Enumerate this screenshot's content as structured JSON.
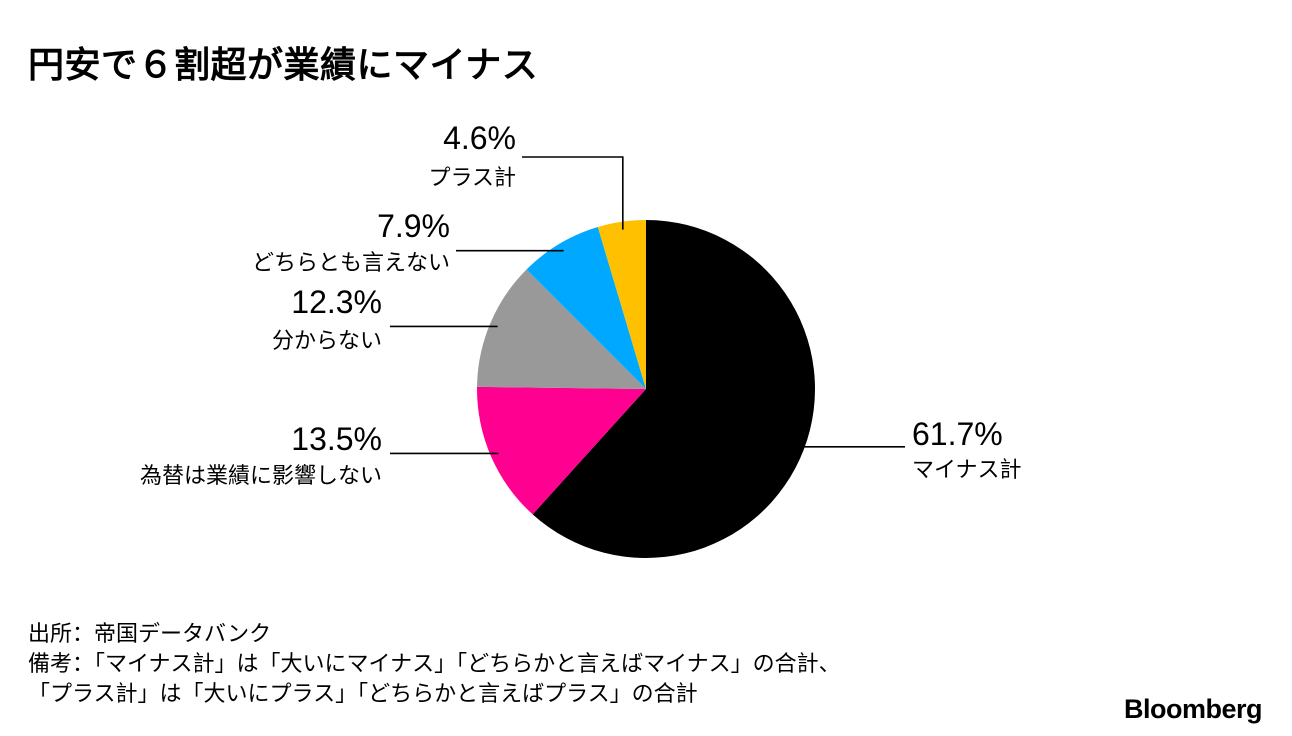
{
  "title": "円安で６割超が業績にマイナス",
  "chart_data": {
    "type": "pie",
    "title": "円安で６割超が業績にマイナス",
    "start": "12 o'clock",
    "direction": "clockwise",
    "slices": [
      {
        "label": "マイナス計",
        "value": 61.7,
        "value_label": "61.7%",
        "color": "#000000"
      },
      {
        "label": "為替は業績に影響しない",
        "value": 13.5,
        "value_label": "13.5%",
        "color": "#ff0090"
      },
      {
        "label": "分からない",
        "value": 12.3,
        "value_label": "12.3%",
        "color": "#999999"
      },
      {
        "label": "どちらとも言えない",
        "value": 7.9,
        "value_label": "7.9%",
        "color": "#00a8ff"
      },
      {
        "label": "プラス計",
        "value": 4.6,
        "value_label": "4.6%",
        "color": "#ffc000"
      }
    ]
  },
  "footer": {
    "source": "出所：帝国データバンク",
    "note_line1": "備考：「マイナス計」は「大いにマイナス」「どちらかと言えばマイナス」の合計、",
    "note_line2": "「プラス計」は「大いにプラス」「どちらかと言えばプラス」の合計"
  },
  "logo": "Bloomberg"
}
